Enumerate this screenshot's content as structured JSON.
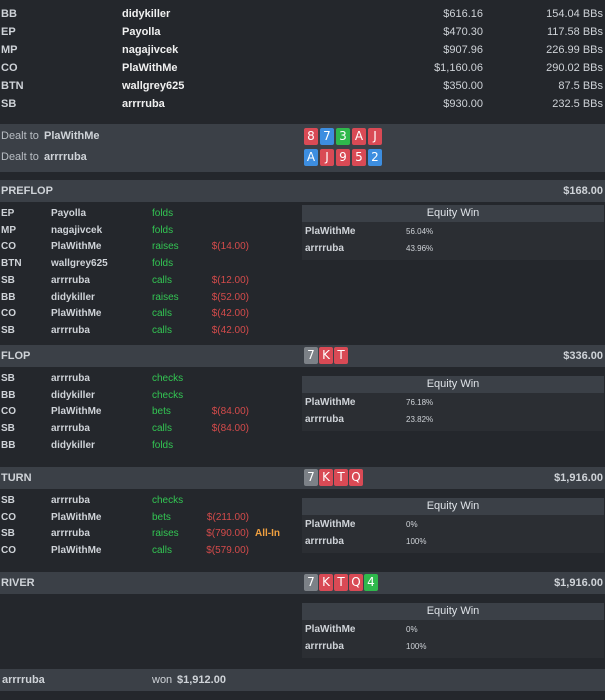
{
  "players": [
    {
      "pos": "BB",
      "name": "didykiller",
      "stack": "$616.16",
      "bbs": "154.04 BBs"
    },
    {
      "pos": "EP",
      "name": "Payolla",
      "stack": "$470.30",
      "bbs": "117.58 BBs"
    },
    {
      "pos": "MP",
      "name": "nagajivcek",
      "stack": "$907.96",
      "bbs": "226.99 BBs"
    },
    {
      "pos": "CO",
      "name": "PlaWithMe",
      "stack": "$1,160.06",
      "bbs": "290.02 BBs"
    },
    {
      "pos": "BTN",
      "name": "wallgrey625",
      "stack": "$350.00",
      "bbs": "87.5 BBs"
    },
    {
      "pos": "SB",
      "name": "arrrruba",
      "stack": "$930.00",
      "bbs": "232.5 BBs"
    }
  ],
  "dealt": [
    {
      "prefix": "Dealt to",
      "name": "PlaWithMe",
      "cards": [
        {
          "r": "8",
          "c": "red"
        },
        {
          "r": "7",
          "c": "blue"
        },
        {
          "r": "3",
          "c": "green"
        },
        {
          "r": "A",
          "c": "red"
        },
        {
          "r": "J",
          "c": "red"
        }
      ]
    },
    {
      "prefix": "Dealt to",
      "name": "arrrruba",
      "cards": [
        {
          "r": "A",
          "c": "blue"
        },
        {
          "r": "J",
          "c": "red"
        },
        {
          "r": "9",
          "c": "red"
        },
        {
          "r": "5",
          "c": "red"
        },
        {
          "r": "2",
          "c": "blue"
        }
      ]
    }
  ],
  "equity_header": "Equity Win",
  "streets": [
    {
      "name": "PREFLOP",
      "pot": "$168.00",
      "board": [],
      "actions": [
        {
          "pos": "EP",
          "name": "Payolla",
          "verb": "folds",
          "amount": "",
          "tag": ""
        },
        {
          "pos": "MP",
          "name": "nagajivcek",
          "verb": "folds",
          "amount": "",
          "tag": ""
        },
        {
          "pos": "CO",
          "name": "PlaWithMe",
          "verb": "raises",
          "amount": "$(14.00)",
          "tag": ""
        },
        {
          "pos": "BTN",
          "name": "wallgrey625",
          "verb": "folds",
          "amount": "",
          "tag": ""
        },
        {
          "pos": "SB",
          "name": "arrrruba",
          "verb": "calls",
          "amount": "$(12.00)",
          "tag": ""
        },
        {
          "pos": "BB",
          "name": "didykiller",
          "verb": "raises",
          "amount": "$(52.00)",
          "tag": ""
        },
        {
          "pos": "CO",
          "name": "PlaWithMe",
          "verb": "calls",
          "amount": "$(42.00)",
          "tag": ""
        },
        {
          "pos": "SB",
          "name": "arrrruba",
          "verb": "calls",
          "amount": "$(42.00)",
          "tag": ""
        }
      ],
      "equity": [
        {
          "name": "PlaWithMe",
          "pct": "56.04%"
        },
        {
          "name": "arrrruba",
          "pct": "43.96%"
        }
      ]
    },
    {
      "name": "FLOP",
      "pot": "$336.00",
      "board": [
        {
          "r": "7",
          "c": "grey"
        },
        {
          "r": "K",
          "c": "red"
        },
        {
          "r": "T",
          "c": "red"
        }
      ],
      "actions": [
        {
          "pos": "SB",
          "name": "arrrruba",
          "verb": "checks",
          "amount": "",
          "tag": ""
        },
        {
          "pos": "BB",
          "name": "didykiller",
          "verb": "checks",
          "amount": "",
          "tag": ""
        },
        {
          "pos": "CO",
          "name": "PlaWithMe",
          "verb": "bets",
          "amount": "$(84.00)",
          "tag": ""
        },
        {
          "pos": "SB",
          "name": "arrrruba",
          "verb": "calls",
          "amount": "$(84.00)",
          "tag": ""
        },
        {
          "pos": "BB",
          "name": "didykiller",
          "verb": "folds",
          "amount": "",
          "tag": ""
        }
      ],
      "equity": [
        {
          "name": "PlaWithMe",
          "pct": "76.18%"
        },
        {
          "name": "arrrruba",
          "pct": "23.82%"
        }
      ]
    },
    {
      "name": "TURN",
      "pot": "$1,916.00",
      "board": [
        {
          "r": "7",
          "c": "grey"
        },
        {
          "r": "K",
          "c": "red"
        },
        {
          "r": "T",
          "c": "red"
        },
        {
          "r": "Q",
          "c": "red"
        }
      ],
      "actions": [
        {
          "pos": "SB",
          "name": "arrrruba",
          "verb": "checks",
          "amount": "",
          "tag": ""
        },
        {
          "pos": "CO",
          "name": "PlaWithMe",
          "verb": "bets",
          "amount": "$(211.00)",
          "tag": ""
        },
        {
          "pos": "SB",
          "name": "arrrruba",
          "verb": "raises",
          "amount": "$(790.00)",
          "tag": "All-In"
        },
        {
          "pos": "CO",
          "name": "PlaWithMe",
          "verb": "calls",
          "amount": "$(579.00)",
          "tag": ""
        }
      ],
      "equity": [
        {
          "name": "PlaWithMe",
          "pct": "0%"
        },
        {
          "name": "arrrruba",
          "pct": "100%"
        }
      ]
    },
    {
      "name": "RIVER",
      "pot": "$1,916.00",
      "board": [
        {
          "r": "7",
          "c": "grey"
        },
        {
          "r": "K",
          "c": "red"
        },
        {
          "r": "T",
          "c": "red"
        },
        {
          "r": "Q",
          "c": "red"
        },
        {
          "r": "4",
          "c": "green"
        }
      ],
      "actions": [],
      "equity": [
        {
          "name": "PlaWithMe",
          "pct": "0%"
        },
        {
          "name": "arrrruba",
          "pct": "100%"
        }
      ]
    }
  ],
  "result": {
    "name": "arrrruba",
    "prefix": "won",
    "amount": "$1,912.00"
  }
}
